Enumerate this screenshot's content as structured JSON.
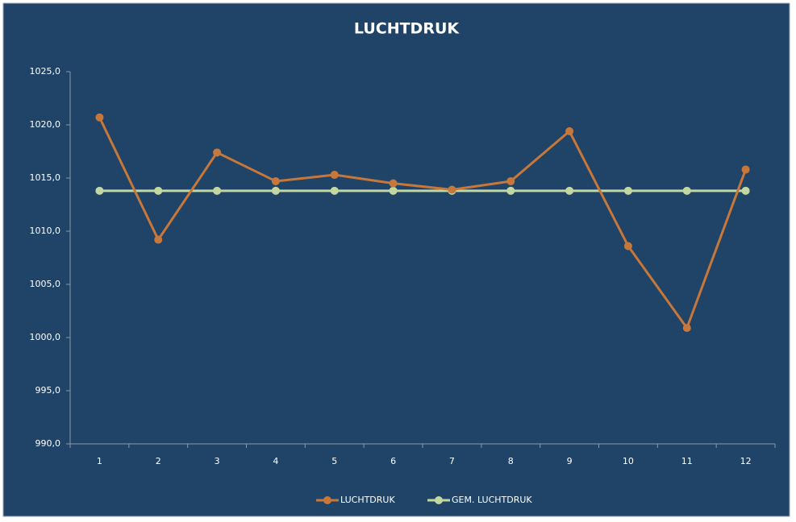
{
  "chart_data": {
    "type": "line",
    "title": "LUCHTDRUK",
    "categories": [
      "1",
      "2",
      "3",
      "4",
      "5",
      "6",
      "7",
      "8",
      "9",
      "10",
      "11",
      "12"
    ],
    "series": [
      {
        "name": "LUCHTDRUK",
        "color": "#c8773a",
        "values": [
          1020.7,
          1009.2,
          1017.4,
          1014.7,
          1015.3,
          1014.5,
          1013.9,
          1014.7,
          1019.4,
          1008.6,
          1000.9,
          1015.8
        ]
      },
      {
        "name": "GEM. LUCHTDRUK",
        "color": "#c4d7a0",
        "values": [
          1013.8,
          1013.8,
          1013.8,
          1013.8,
          1013.8,
          1013.8,
          1013.8,
          1013.8,
          1013.8,
          1013.8,
          1013.8,
          1013.8
        ]
      }
    ],
    "ylim": [
      990,
      1025
    ],
    "yticks": [
      {
        "value": 990,
        "label": "990,0"
      },
      {
        "value": 995,
        "label": "995,0"
      },
      {
        "value": 1000,
        "label": "1000,0"
      },
      {
        "value": 1005,
        "label": "1005,0"
      },
      {
        "value": 1010,
        "label": "1010,0"
      },
      {
        "value": 1015,
        "label": "1015,0"
      },
      {
        "value": 1020,
        "label": "1020,0"
      },
      {
        "value": 1025,
        "label": "1025,0"
      }
    ],
    "grid": false,
    "legend": "bottom"
  }
}
